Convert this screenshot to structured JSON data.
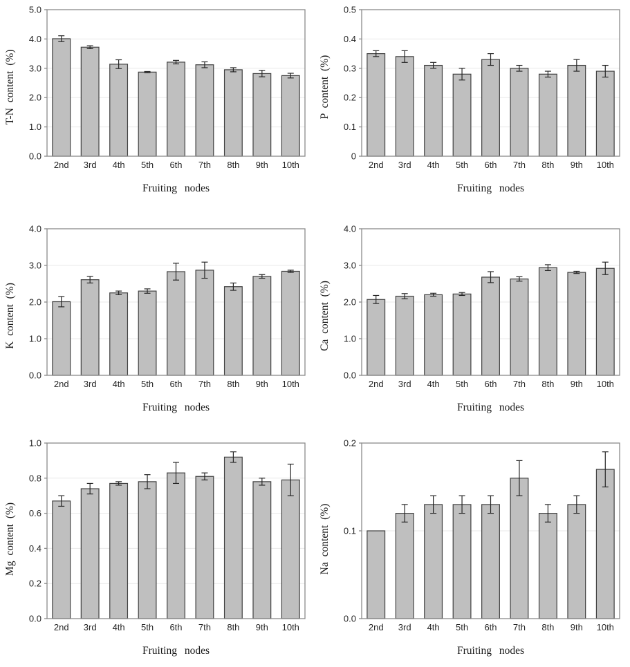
{
  "colors": {
    "background": "#ffffff",
    "bar_fill": "#bfbfbf",
    "bar_border": "#404040",
    "error_bar": "#262626",
    "plot_border": "#8a8a8a",
    "gridline": "#e8e8e8",
    "text": "#262626"
  },
  "chart_data": [
    {
      "type": "bar",
      "ylabel": "T-N content (%)",
      "xlabel": "Fruiting nodes",
      "categories": [
        "2nd",
        "3rd",
        "4th",
        "5th",
        "6th",
        "7th",
        "8th",
        "9th",
        "10th"
      ],
      "values": [
        4.01,
        3.72,
        3.14,
        2.87,
        3.21,
        3.12,
        2.95,
        2.82,
        2.75
      ],
      "errors": [
        0.1,
        0.05,
        0.15,
        0.02,
        0.06,
        0.1,
        0.07,
        0.11,
        0.08
      ],
      "ylim": [
        0,
        5
      ],
      "yticks": [
        0,
        1,
        2,
        3,
        4,
        5
      ],
      "ytick_labels": [
        "0.0",
        "1.0",
        "2.0",
        "3.0",
        "4.0",
        "5.0"
      ],
      "grid": true,
      "legend": "none"
    },
    {
      "type": "bar",
      "ylabel": "P content (%)",
      "xlabel": "Fruiting nodes",
      "categories": [
        "2nd",
        "3rd",
        "4th",
        "5th",
        "6th",
        "7th",
        "8th",
        "9th",
        "10th"
      ],
      "values": [
        0.35,
        0.34,
        0.31,
        0.28,
        0.33,
        0.3,
        0.28,
        0.31,
        0.29
      ],
      "errors": [
        0.01,
        0.02,
        0.01,
        0.02,
        0.02,
        0.01,
        0.01,
        0.02,
        0.02
      ],
      "ylim": [
        0,
        0.5
      ],
      "yticks": [
        0,
        0.1,
        0.2,
        0.3,
        0.4,
        0.5
      ],
      "ytick_labels": [
        "0",
        "0.1",
        "0.2",
        "0.3",
        "0.4",
        "0.5"
      ],
      "grid": true,
      "legend": "none"
    },
    {
      "type": "bar",
      "ylabel": "K content (%)",
      "xlabel": "Fruiting nodes",
      "categories": [
        "2nd",
        "3rd",
        "4th",
        "5th",
        "6th",
        "7th",
        "8th",
        "9th",
        "10th"
      ],
      "values": [
        2.01,
        2.61,
        2.25,
        2.3,
        2.83,
        2.87,
        2.42,
        2.7,
        2.84
      ],
      "errors": [
        0.14,
        0.09,
        0.05,
        0.06,
        0.23,
        0.22,
        0.1,
        0.05,
        0.03
      ],
      "ylim": [
        0,
        4
      ],
      "yticks": [
        0,
        1,
        2,
        3,
        4
      ],
      "ytick_labels": [
        "0.0",
        "1.0",
        "2.0",
        "3.0",
        "4.0"
      ],
      "grid": true,
      "legend": "none"
    },
    {
      "type": "bar",
      "ylabel": "Ca content (%)",
      "xlabel": "Fruiting nodes",
      "categories": [
        "2nd",
        "3rd",
        "4th",
        "5th",
        "6th",
        "7th",
        "8th",
        "9th",
        "10th"
      ],
      "values": [
        2.07,
        2.16,
        2.2,
        2.22,
        2.68,
        2.63,
        2.94,
        2.81,
        2.92
      ],
      "errors": [
        0.11,
        0.07,
        0.04,
        0.04,
        0.15,
        0.06,
        0.08,
        0.03,
        0.17
      ],
      "ylim": [
        0,
        4
      ],
      "yticks": [
        0,
        1,
        2,
        3,
        4
      ],
      "ytick_labels": [
        "0.0",
        "1.0",
        "2.0",
        "3.0",
        "4.0"
      ],
      "grid": true,
      "legend": "none"
    },
    {
      "type": "bar",
      "ylabel": "Mg content (%)",
      "xlabel": "Fruiting nodes",
      "categories": [
        "2nd",
        "3rd",
        "4th",
        "5th",
        "6th",
        "7th",
        "8th",
        "9th",
        "10th"
      ],
      "values": [
        0.67,
        0.74,
        0.77,
        0.78,
        0.83,
        0.81,
        0.92,
        0.78,
        0.79
      ],
      "errors": [
        0.03,
        0.03,
        0.01,
        0.04,
        0.06,
        0.02,
        0.03,
        0.02,
        0.09
      ],
      "ylim": [
        0,
        1
      ],
      "yticks": [
        0,
        0.2,
        0.4,
        0.6,
        0.8,
        1.0
      ],
      "ytick_labels": [
        "0.0",
        "0.2",
        "0.4",
        "0.6",
        "0.8",
        "1.0"
      ],
      "grid": true,
      "legend": "none"
    },
    {
      "type": "bar",
      "ylabel": "Na content (%)",
      "xlabel": "Fruiting nodes",
      "categories": [
        "2nd",
        "3rd",
        "4th",
        "5th",
        "6th",
        "7th",
        "8th",
        "9th",
        "10th"
      ],
      "values": [
        0.1,
        0.12,
        0.13,
        0.13,
        0.13,
        0.16,
        0.12,
        0.13,
        0.17
      ],
      "errors": [
        0,
        0.01,
        0.01,
        0.01,
        0.01,
        0.02,
        0.01,
        0.01,
        0.02
      ],
      "ylim": [
        0,
        0.2
      ],
      "yticks": [
        0,
        0.1,
        0.2
      ],
      "ytick_labels": [
        "0.0",
        "0.1",
        "0.2"
      ],
      "grid": true,
      "legend": "none"
    }
  ]
}
